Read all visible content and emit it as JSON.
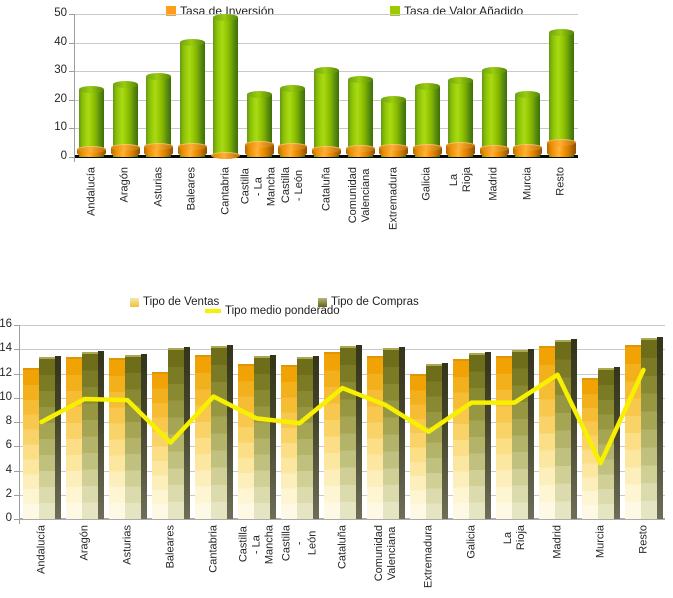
{
  "page": {
    "background": "#FFFFFF"
  },
  "chart_data": [
    {
      "type": "bar",
      "title": "",
      "xlabel": "",
      "ylabel": "",
      "ylim": [
        0,
        50
      ],
      "yticks": [
        0,
        10,
        20,
        30,
        40,
        50
      ],
      "grid": true,
      "legend_position": "top",
      "bar_style": "3d-cylinder",
      "categories": [
        "Andalucía",
        "Aragón",
        "Asturias",
        "Baleares",
        "Cantabria",
        "Castilla - La Mancha",
        "Castilla - León",
        "Cataluña",
        "Comunidad Valenciana",
        "Extremadura",
        "Galicia",
        "La Rioja",
        "Madrid",
        "Murcia",
        "Resto"
      ],
      "series": [
        {
          "name": "Tasa de Inversión",
          "type": "bar",
          "color": "#FF9E19",
          "values": [
            2.8,
            3.3,
            3.6,
            3.6,
            0.6,
            4.3,
            3.7,
            2.6,
            3.1,
            3.2,
            3.3,
            4.2,
            3.0,
            3.4,
            5.0
          ]
        },
        {
          "name": "Tasa de Valor Añadido",
          "type": "bar",
          "color": "#9BCB00",
          "values": [
            23.5,
            25.3,
            28.0,
            40.2,
            48.8,
            21.9,
            23.8,
            30.2,
            27.0,
            20.0,
            24.5,
            26.9,
            30.3,
            21.7,
            43.5
          ]
        }
      ]
    },
    {
      "type": "bar+line",
      "title": "",
      "xlabel": "",
      "ylabel": "",
      "ylim": [
        0,
        16
      ],
      "yticks": [
        0,
        2,
        4,
        6,
        8,
        10,
        12,
        14,
        16
      ],
      "grid": true,
      "legend_position": "top",
      "bar_style": "3d-gradient-steps",
      "categories": [
        "Andalucía",
        "Aragón",
        "Asturias",
        "Baleares",
        "Cantabria",
        "Castilla - La\nMancha",
        "Castilla -\nLeón",
        "Cataluña",
        "Comunidad\nValenciana",
        "Extremadura",
        "Galicia",
        "La Rioja",
        "Madrid",
        "Murcia",
        "Resto"
      ],
      "series": [
        {
          "name": "Tipo de Ventas",
          "type": "bar",
          "color": "#F5B915",
          "values": [
            12.3,
            13.2,
            13.1,
            12.0,
            13.4,
            12.6,
            12.5,
            13.6,
            13.3,
            11.8,
            13.0,
            13.3,
            14.1,
            11.5,
            14.2
          ]
        },
        {
          "name": "Tipo de Compras",
          "type": "bar",
          "color": "#80801F",
          "values": [
            13.2,
            13.6,
            13.4,
            13.9,
            14.1,
            13.3,
            13.2,
            14.1,
            13.9,
            12.6,
            13.5,
            13.8,
            14.6,
            12.3,
            14.8
          ]
        },
        {
          "name": "Tipo medio ponderado",
          "type": "line",
          "color": "#F7F000",
          "values": [
            8.0,
            9.9,
            9.8,
            6.3,
            10.1,
            8.3,
            7.9,
            10.8,
            9.4,
            7.2,
            9.6,
            9.6,
            11.9,
            4.6,
            12.3
          ]
        }
      ]
    }
  ]
}
